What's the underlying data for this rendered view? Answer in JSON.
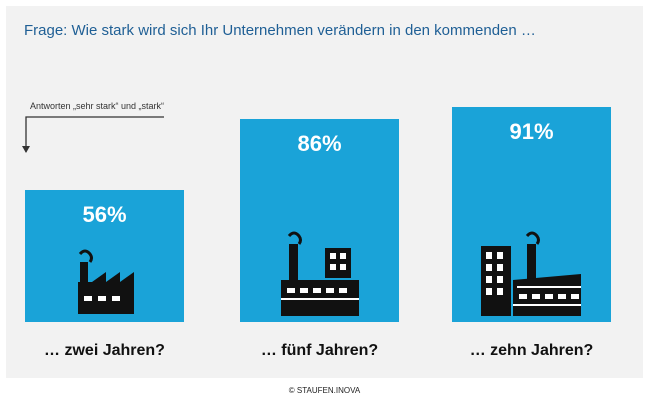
{
  "question": "Frage: Wie stark wird sich Ihr Unternehmen verändern in den kommenden …",
  "note": "Antworten „sehr stark“ und „stark“",
  "copyright": "© STAUFEN.INOVA",
  "colors": {
    "bar": "#1aa3d8",
    "title": "#1f5f95",
    "icon": "#111111"
  },
  "chart_data": {
    "type": "bar",
    "categories": [
      "… zwei Jahren?",
      "… fünf Jahren?",
      "… zehn Jahren?"
    ],
    "values": [
      56,
      86,
      91
    ],
    "value_labels": [
      "56%",
      "86%",
      "91%"
    ],
    "unit": "%",
    "ylim": [
      0,
      100
    ],
    "grid": false,
    "icons": [
      "factory-icon",
      "factory-with-office-icon",
      "factory-with-tower-icon"
    ]
  }
}
